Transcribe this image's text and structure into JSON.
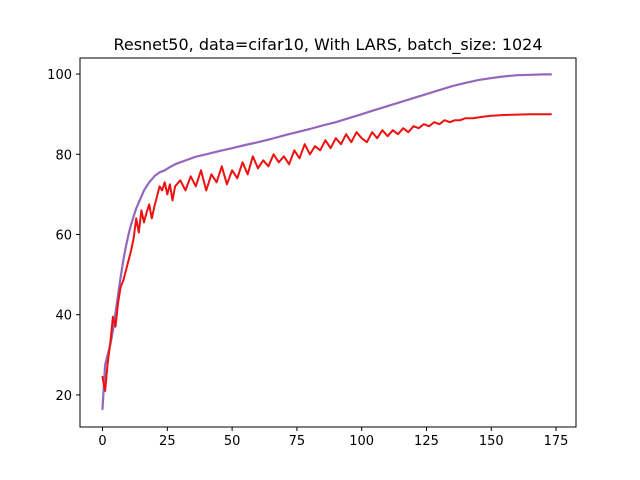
{
  "chart_data": {
    "type": "line",
    "title": "Resnet50, data=cifar10, With LARS, batch_size: 1024",
    "xlabel": "",
    "ylabel": "",
    "xlim": [
      -8.7,
      182.7
    ],
    "ylim": [
      12.0,
      104.0
    ],
    "xticks": [
      0,
      25,
      50,
      75,
      100,
      125,
      150,
      175
    ],
    "yticks": [
      20,
      40,
      60,
      80,
      100
    ],
    "grid": false,
    "legend": "none",
    "series": [
      {
        "color": "#9467bd",
        "x": [
          0,
          1,
          2,
          3,
          4,
          5,
          6,
          7,
          8,
          9,
          10,
          11,
          12,
          13,
          14,
          15,
          16,
          18,
          20,
          22,
          24,
          26,
          28,
          30,
          33,
          36,
          40,
          45,
          50,
          55,
          60,
          65,
          70,
          75,
          80,
          85,
          90,
          95,
          100,
          105,
          110,
          115,
          120,
          125,
          130,
          135,
          140,
          145,
          150,
          155,
          160,
          165,
          170,
          173
        ],
        "values": [
          16.5,
          27.5,
          30.0,
          32.5,
          36.0,
          40.5,
          45.0,
          49.5,
          53.5,
          57.0,
          60.0,
          62.5,
          64.5,
          66.5,
          68.0,
          69.5,
          71.0,
          73.0,
          74.5,
          75.5,
          76.0,
          76.8,
          77.5,
          78.0,
          78.7,
          79.4,
          80.0,
          80.8,
          81.5,
          82.3,
          83.0,
          83.8,
          84.7,
          85.5,
          86.3,
          87.2,
          88.0,
          89.0,
          90.0,
          91.0,
          92.0,
          93.0,
          94.0,
          95.0,
          96.0,
          97.0,
          97.8,
          98.5,
          99.0,
          99.4,
          99.7,
          99.8,
          99.9,
          99.9
        ]
      },
      {
        "color": "#ee1111",
        "x": [
          0,
          1,
          2,
          3,
          4,
          5,
          6,
          7,
          8,
          9,
          10,
          11,
          12,
          13,
          14,
          15,
          16,
          17,
          18,
          19,
          20,
          21,
          22,
          23,
          24,
          25,
          26,
          27,
          28,
          30,
          32,
          34,
          36,
          38,
          40,
          42,
          44,
          46,
          48,
          50,
          52,
          54,
          56,
          58,
          60,
          62,
          64,
          66,
          68,
          70,
          72,
          74,
          76,
          78,
          80,
          82,
          84,
          86,
          88,
          90,
          92,
          94,
          96,
          98,
          100,
          102,
          104,
          106,
          108,
          110,
          112,
          114,
          116,
          118,
          120,
          122,
          124,
          126,
          128,
          130,
          132,
          134,
          136,
          138,
          140,
          143,
          146,
          150,
          155,
          160,
          165,
          170,
          173
        ],
        "values": [
          24.5,
          21.0,
          28.0,
          33.0,
          39.5,
          37.0,
          43.0,
          47.0,
          48.5,
          51.0,
          53.5,
          56.0,
          59.0,
          64.0,
          60.5,
          66.0,
          63.0,
          65.5,
          67.5,
          64.0,
          67.0,
          69.5,
          72.0,
          71.0,
          73.0,
          70.0,
          72.5,
          68.5,
          72.0,
          73.5,
          71.0,
          74.5,
          72.0,
          76.0,
          71.0,
          75.0,
          73.0,
          77.0,
          72.5,
          76.0,
          74.0,
          78.0,
          75.0,
          79.5,
          76.5,
          78.5,
          77.0,
          80.0,
          78.0,
          79.5,
          77.5,
          81.0,
          79.0,
          82.5,
          80.0,
          82.0,
          81.0,
          83.5,
          81.5,
          84.0,
          82.5,
          85.0,
          83.0,
          85.5,
          84.0,
          83.0,
          85.5,
          84.0,
          86.0,
          84.5,
          86.0,
          85.0,
          86.5,
          85.5,
          87.0,
          86.5,
          87.5,
          87.0,
          88.0,
          87.5,
          88.5,
          88.0,
          88.5,
          88.5,
          89.0,
          89.0,
          89.3,
          89.6,
          89.8,
          89.9,
          90.0,
          90.0,
          90.0
        ]
      }
    ]
  }
}
